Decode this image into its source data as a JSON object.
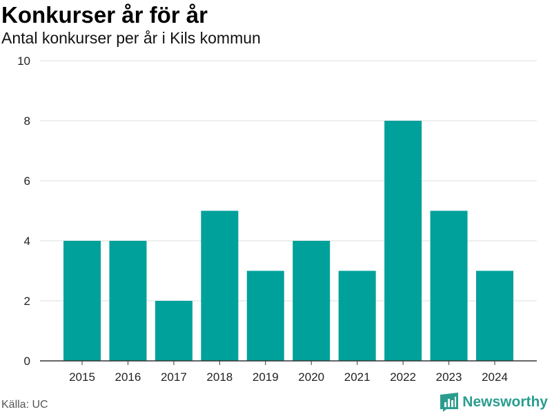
{
  "title": "Konkurser år för år",
  "subtitle": "Antal konkurser per år i Kils kommun",
  "source": "Källa: UC",
  "brand": {
    "name": "Newsworthy",
    "icon": "newsworthy-logo-icon",
    "color": "#2a9d8f"
  },
  "colors": {
    "bar": "#00a19a",
    "grid": "#dddddd",
    "axis": "#333333"
  },
  "chart_data": {
    "type": "bar",
    "title": "Konkurser år för år",
    "subtitle": "Antal konkurser per år i Kils kommun",
    "xlabel": "",
    "ylabel": "",
    "categories": [
      "2015",
      "2016",
      "2017",
      "2018",
      "2019",
      "2020",
      "2021",
      "2022",
      "2023",
      "2024"
    ],
    "values": [
      4,
      4,
      2,
      5,
      3,
      4,
      3,
      8,
      5,
      3
    ],
    "ylim": [
      0,
      10
    ],
    "yticks": [
      0,
      2,
      4,
      6,
      8,
      10
    ],
    "grid": true,
    "legend": "none"
  }
}
